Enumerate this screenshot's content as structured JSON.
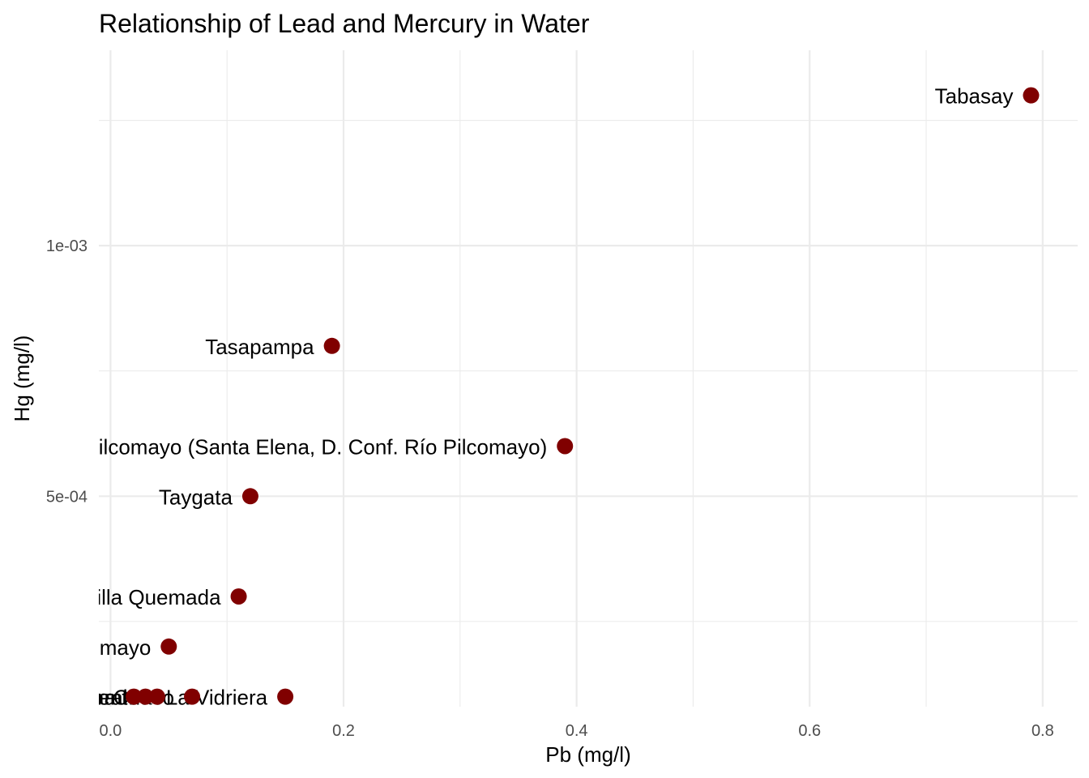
{
  "chart_data": {
    "type": "scatter",
    "title": "Relationship of Lead and Mercury in Water",
    "xlabel": "Pb (mg/l)",
    "ylabel": "Hg (mg/l)",
    "xlim": [
      -0.01,
      0.83
    ],
    "ylim": [
      8e-05,
      0.00139
    ],
    "x_ticks": [
      0.0,
      0.2,
      0.4,
      0.6,
      0.8
    ],
    "x_tick_labels": [
      "0.0",
      "0.2",
      "0.4",
      "0.6",
      "0.8"
    ],
    "x_minor_ticks": [
      0.1,
      0.3,
      0.5,
      0.7
    ],
    "y_ticks": [
      0.0005,
      0.001
    ],
    "y_tick_labels": [
      "5e-04",
      "1e-03"
    ],
    "y_minor_ticks": [
      0.00025,
      0.00075,
      0.00125
    ],
    "grid": true,
    "legend": "none",
    "point_color": "#800000",
    "points": [
      {
        "x": 0.79,
        "y": 0.0013,
        "label": "Tabasay"
      },
      {
        "x": 0.19,
        "y": 0.0008,
        "label": "Tasapampa"
      },
      {
        "x": 0.39,
        "y": 0.0006,
        "label": "Río Pilcomayo (Santa Elena, D. Conf. Río Pilcomayo)"
      },
      {
        "x": 0.12,
        "y": 0.0005,
        "label": "Taygata"
      },
      {
        "x": 0.11,
        "y": 0.0003,
        "label": "Cruce Villa Quemada"
      },
      {
        "x": 0.05,
        "y": 0.0002,
        "label": "Río Pilcomayo"
      },
      {
        "x": 0.15,
        "y": 0.0001,
        "label": "La Vidriera"
      },
      {
        "x": 0.07,
        "y": 0.0001,
        "label": "Chaco"
      },
      {
        "x": 0.04,
        "y": 0.0001,
        "label": "Puente"
      },
      {
        "x": 0.03,
        "y": 0.0001,
        "label": "Mataral"
      },
      {
        "x": 0.02,
        "y": 0.0001,
        "label": "Yesera"
      }
    ]
  }
}
